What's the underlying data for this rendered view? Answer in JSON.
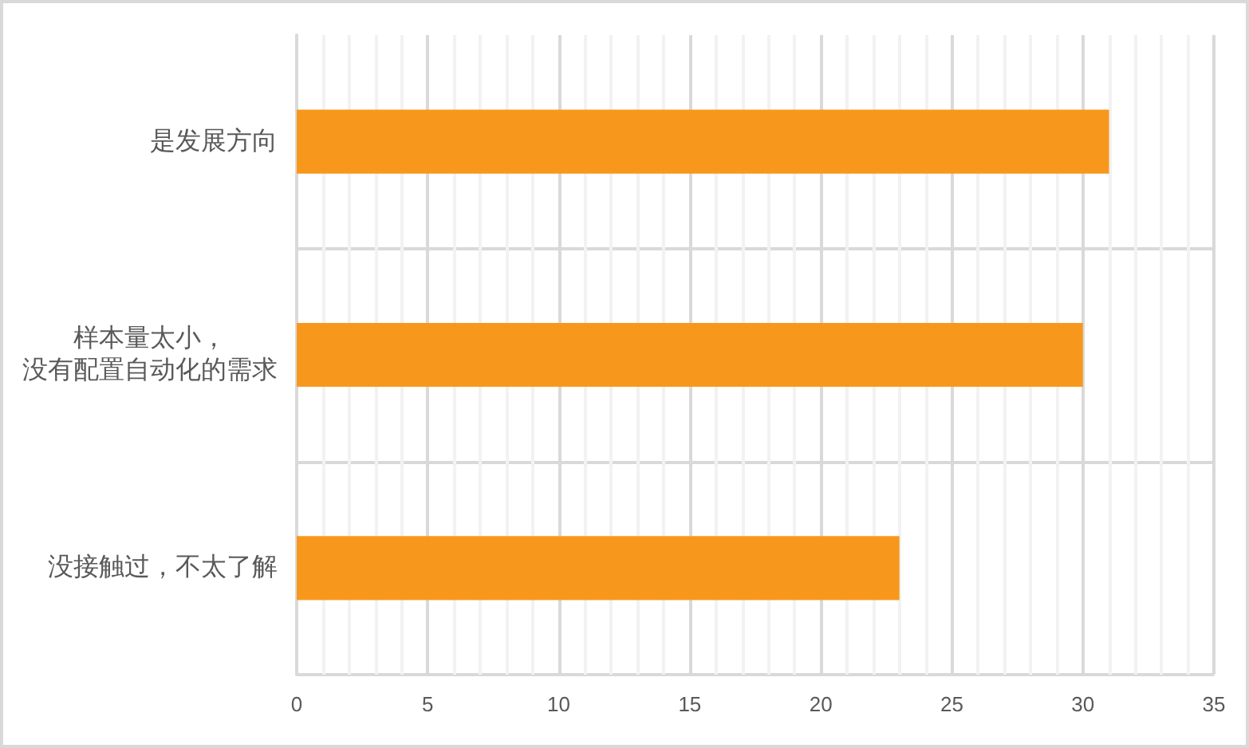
{
  "chart_data": {
    "type": "bar",
    "orientation": "horizontal",
    "categories": [
      "是发展方向",
      "样本量太小，没有配置自动化的需求",
      "没接触过，不太了解"
    ],
    "values": [
      31,
      30,
      23
    ],
    "color": "#f7981d",
    "xlim": [
      0,
      35
    ],
    "xticks": [
      0,
      5,
      10,
      15,
      20,
      25,
      30,
      35
    ],
    "grid": true
  }
}
